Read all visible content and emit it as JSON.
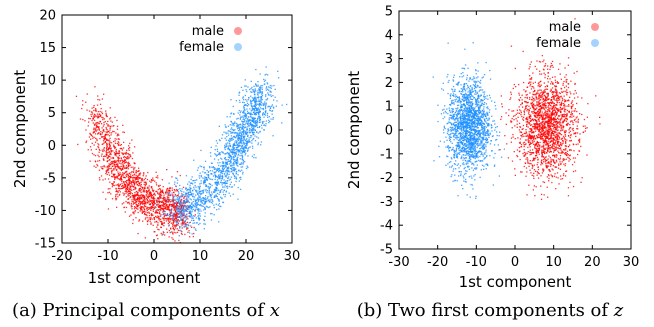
{
  "chart_data": [
    {
      "type": "scatter",
      "title": "",
      "xlabel": "1st component",
      "ylabel": "2nd component",
      "xlim": [
        -20,
        30
      ],
      "ylim": [
        -15,
        20
      ],
      "xticks": [
        "-20",
        "-10",
        "0",
        "10",
        "20",
        "30"
      ],
      "yticks": [
        "-15",
        "-10",
        "-5",
        "0",
        "5",
        "10",
        "15",
        "20"
      ],
      "grid": false,
      "legend_position": "top-right",
      "series": [
        {
          "name": "male",
          "color": "#ff0000",
          "shape": "curved-cluster",
          "x": [
            -13,
            -12,
            -11,
            -10,
            -9,
            -8,
            -7,
            -6,
            -5,
            -4,
            -3,
            -2,
            -1,
            0,
            1,
            2,
            3,
            4,
            5,
            6
          ],
          "y": [
            5,
            3,
            1.5,
            -0.5,
            -2,
            -3.5,
            -4.5,
            -5.5,
            -6.5,
            -7,
            -7.5,
            -8,
            -8.5,
            -9,
            -9.2,
            -9.5,
            -9.8,
            -10,
            -10.2,
            -10.5
          ]
        },
        {
          "name": "female",
          "color": "#1e90ff",
          "shape": "curved-cluster",
          "x": [
            4,
            6,
            8,
            10,
            12,
            14,
            16,
            17,
            18,
            19,
            20,
            21,
            22,
            23,
            24
          ],
          "y": [
            -10,
            -9.5,
            -9,
            -8,
            -6.5,
            -5,
            -3,
            -1.5,
            0,
            1.5,
            3,
            4.5,
            5.5,
            7,
            8
          ]
        }
      ]
    },
    {
      "type": "scatter",
      "title": "",
      "xlabel": "1st component",
      "ylabel": "2nd component",
      "xlim": [
        -30,
        30
      ],
      "ylim": [
        -5,
        5
      ],
      "xticks": [
        "-30",
        "-20",
        "-10",
        "0",
        "10",
        "20",
        "30"
      ],
      "yticks": [
        "-5",
        "-4",
        "-3",
        "-2",
        "-1",
        "0",
        "1",
        "2",
        "3",
        "4",
        "5"
      ],
      "grid": false,
      "legend_position": "top-right",
      "series": [
        {
          "name": "male",
          "color": "#ff0000",
          "center": [
            8,
            0.2
          ],
          "spread": [
            7,
            1.4
          ]
        },
        {
          "name": "female",
          "color": "#1e90ff",
          "center": [
            -12,
            0.2
          ],
          "spread": [
            5,
            1.3
          ]
        }
      ]
    }
  ],
  "captions": {
    "a_prefix": "(a) Principal components of ",
    "a_var": "x",
    "b_prefix": "(b) Two first components of ",
    "b_var": "z"
  }
}
